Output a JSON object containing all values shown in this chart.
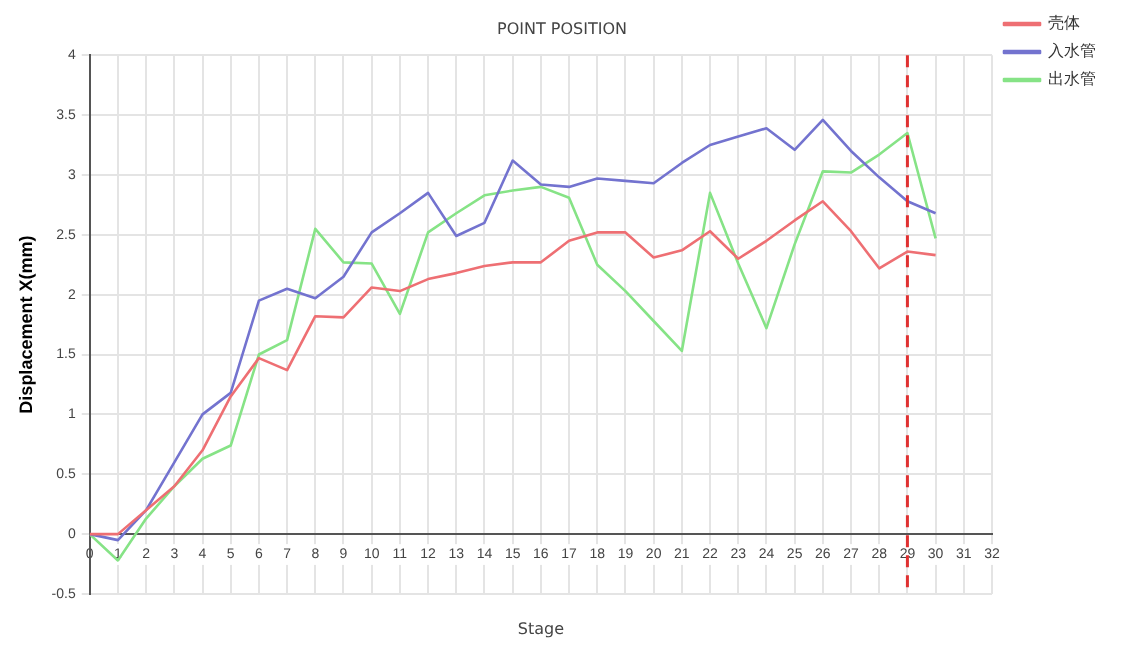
{
  "chart_data": {
    "type": "line",
    "title": "POINT POSITION",
    "xlabel": "Stage",
    "ylabel": "Displacement X(mm)",
    "x": [
      0,
      1,
      2,
      3,
      4,
      5,
      6,
      7,
      8,
      9,
      10,
      11,
      12,
      13,
      14,
      15,
      16,
      17,
      18,
      19,
      20,
      21,
      22,
      23,
      24,
      25,
      26,
      27,
      28,
      29,
      30
    ],
    "series": [
      {
        "name": "壳体",
        "color": "#ee6f73",
        "values": [
          0,
          0,
          0.2,
          0.4,
          0.7,
          1.15,
          1.47,
          1.37,
          1.82,
          1.81,
          2.06,
          2.03,
          2.13,
          2.18,
          2.24,
          2.27,
          2.27,
          2.45,
          2.52,
          2.52,
          2.31,
          2.37,
          2.53,
          2.3,
          2.45,
          2.62,
          2.78,
          2.53,
          2.22,
          2.36,
          2.33
        ]
      },
      {
        "name": "入水管",
        "color": "#7373cf",
        "values": [
          0,
          -0.05,
          0.2,
          0.6,
          1.0,
          1.18,
          1.95,
          2.05,
          1.97,
          2.15,
          2.52,
          2.68,
          2.85,
          2.49,
          2.6,
          3.12,
          2.92,
          2.9,
          2.97,
          2.95,
          2.93,
          3.1,
          3.25,
          3.32,
          3.39,
          3.21,
          3.46,
          3.2,
          2.98,
          2.78,
          2.68
        ]
      },
      {
        "name": "出水管",
        "color": "#86e386",
        "values": [
          0,
          -0.22,
          0.13,
          0.4,
          0.63,
          0.74,
          1.5,
          1.62,
          2.55,
          2.27,
          2.26,
          1.84,
          2.52,
          2.68,
          2.83,
          2.87,
          2.9,
          2.81,
          2.25,
          2.03,
          1.78,
          1.53,
          2.85,
          2.26,
          1.72,
          2.42,
          3.03,
          3.02,
          3.17,
          3.35,
          2.47
        ]
      }
    ],
    "xlim": [
      0,
      32
    ],
    "xticks": [
      0,
      1,
      2,
      3,
      4,
      5,
      6,
      7,
      8,
      9,
      10,
      11,
      12,
      13,
      14,
      15,
      16,
      17,
      18,
      19,
      20,
      21,
      22,
      23,
      24,
      25,
      26,
      27,
      28,
      29,
      30,
      31,
      32
    ],
    "ylim": [
      -0.5,
      4
    ],
    "yticks": [
      -0.5,
      0,
      0.5,
      1,
      1.5,
      2,
      2.5,
      3,
      3.5,
      4
    ],
    "ref_lines": [
      {
        "axis": "x",
        "value": 29,
        "color": "#e03030",
        "line_style": "dashed"
      }
    ],
    "grid": true,
    "legend": "top right",
    "marker": "none",
    "line_style": "solid"
  }
}
